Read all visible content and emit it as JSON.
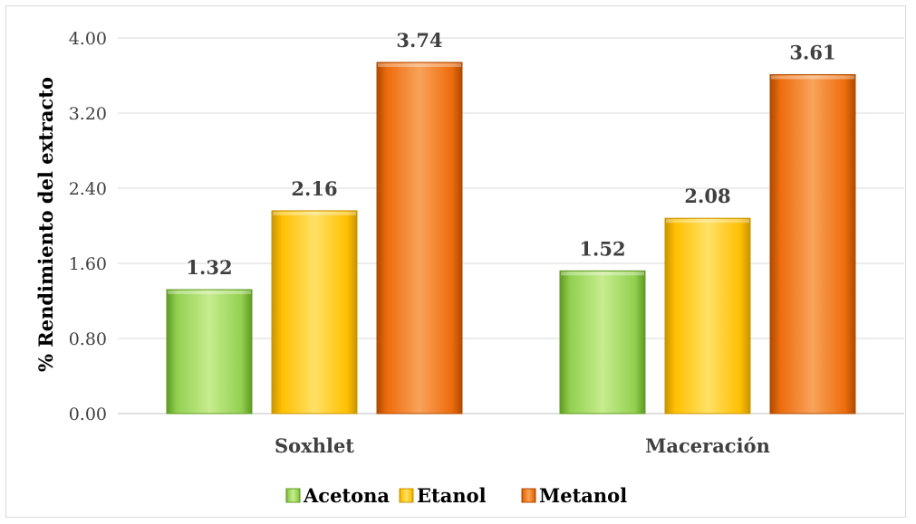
{
  "chart_data": {
    "type": "bar",
    "categories": [
      "Soxhlet",
      "Maceración"
    ],
    "series": [
      {
        "name": "Acetona",
        "values": [
          1.32,
          1.52
        ],
        "color": "#92d050",
        "color_light": "#c6ec8e",
        "color_dark": "#5f9a22"
      },
      {
        "name": "Etanol",
        "values": [
          2.16,
          2.08
        ],
        "color": "#ffc000",
        "color_light": "#ffe066",
        "color_dark": "#c99400"
      },
      {
        "name": "Metanol",
        "values": [
          3.74,
          3.61
        ],
        "color": "#ed6c0c",
        "color_light": "#f8a35a",
        "color_dark": "#b04a00"
      }
    ],
    "ylabel": "% Rendimiento del extracto",
    "ylim": [
      0,
      4
    ],
    "yticks": [
      "0.00",
      "0.80",
      "1.60",
      "2.40",
      "3.20",
      "4.00"
    ],
    "ytick_values": [
      0,
      0.8,
      1.6,
      2.4,
      3.2,
      4.0
    ],
    "grid": true,
    "legend_position": "bottom"
  }
}
